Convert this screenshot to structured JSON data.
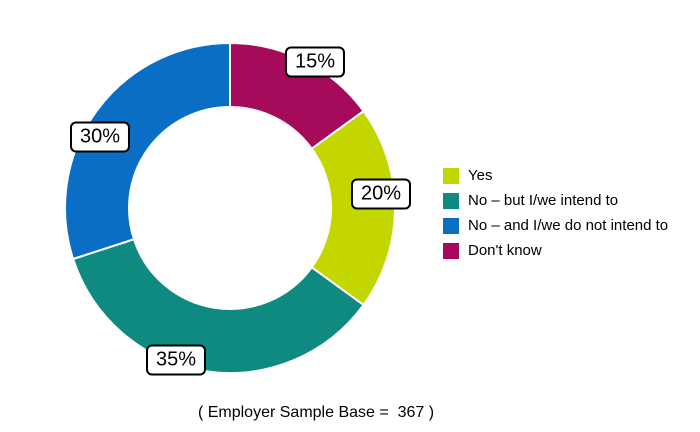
{
  "caption": "( Employer Sample Base =  367 )",
  "chart_data": {
    "type": "pie",
    "subtype": "donut",
    "title": "",
    "categories": [
      "Yes",
      "No – but I/we intend to",
      "No – and I/we do not intend to",
      "Don't know"
    ],
    "values": [
      20,
      35,
      30,
      15
    ],
    "slices": [
      {
        "label": "Yes",
        "value": 20,
        "display": "20%",
        "color": "#c4d600"
      },
      {
        "label": "No – but I/we intend to",
        "value": 35,
        "display": "35%",
        "color": "#0e8a80"
      },
      {
        "label": "No – and I/we do not intend to",
        "value": 30,
        "display": "30%",
        "color": "#0a6ec4"
      },
      {
        "label": "Don't know",
        "value": 15,
        "display": "15%",
        "color": "#a50b5a"
      }
    ],
    "legend_position": "right",
    "direction": "clockwise",
    "start_offset_deg": 54,
    "donut_hole_ratio": 0.61,
    "slice_separator_color": "#ffffff",
    "label_style": "boxed-percent-callouts"
  }
}
